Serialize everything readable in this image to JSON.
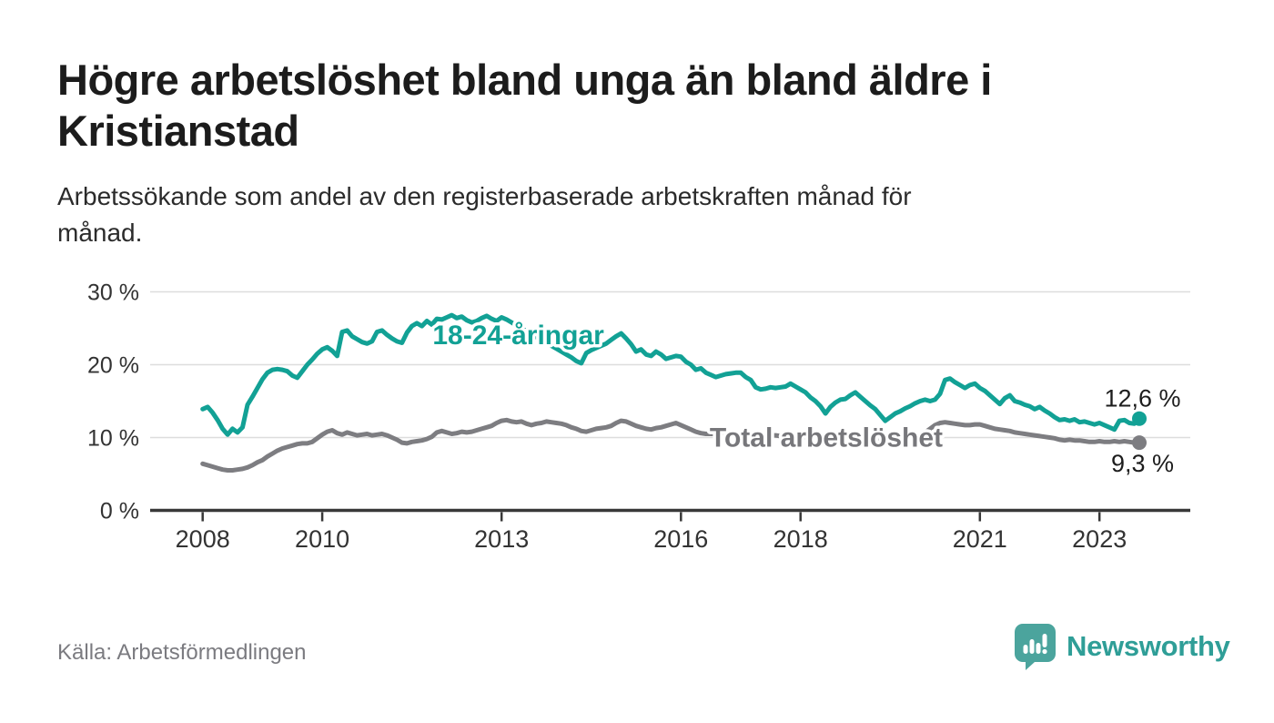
{
  "header": {
    "title_line1": "Högre arbetslöshet bland unga än bland äldre i",
    "title_line2": "Kristianstad",
    "subtitle_line1": "Arbetssökande som andel av den registerbaserade arbetskraften månad för",
    "subtitle_line2": "månad."
  },
  "footer": {
    "source": "Källa: Arbetsförmedlingen",
    "brand": "Newsworthy"
  },
  "colors": {
    "youth_line": "#12A195",
    "total_line": "#7D7D81",
    "grid": "#DDDDDD",
    "axis": "#383838",
    "tick_text": "#333333",
    "annotation_text": "#1D1D1D",
    "logo_bubble": "#4BA49D",
    "brand_text": "#2F9E97"
  },
  "chart_data": {
    "type": "line",
    "title": "Högre arbetslöshet bland unga än bland äldre i Kristianstad",
    "subtitle": "Arbetssökande som andel av den registerbaserade arbetskraften månad för månad.",
    "unit": "%",
    "x_start_year": 2008,
    "points_per_year": 12,
    "x_end_label": "sep 2023",
    "xlim": [
      2007.1,
      2024.6
    ],
    "ylim": [
      0,
      32
    ],
    "grid": "horizontal",
    "legend_position": "inline-labels",
    "xticks": [
      2008,
      2010,
      2013,
      2016,
      2018,
      2021,
      2023
    ],
    "xtick_labels": [
      "2008",
      "2010",
      "2013",
      "2016",
      "2018",
      "2021",
      "2023"
    ],
    "yticks": [
      0,
      10,
      20,
      30
    ],
    "ytick_labels": [
      "0 %",
      "10 %",
      "20 %",
      "30 %"
    ],
    "series": [
      {
        "name": "18-24-åringar",
        "color": "#12A195",
        "end_value": 12.6,
        "end_label": "12,6 %",
        "values": [
          13.9,
          14.2,
          13.4,
          12.4,
          11.2,
          10.4,
          11.2,
          10.7,
          11.4,
          14.5,
          15.6,
          16.8,
          18.0,
          18.9,
          19.3,
          19.4,
          19.3,
          19.1,
          18.5,
          18.2,
          19.1,
          20.0,
          20.7,
          21.5,
          22.1,
          22.4,
          21.9,
          21.2,
          24.5,
          24.7,
          23.9,
          23.5,
          23.1,
          22.9,
          23.2,
          24.5,
          24.7,
          24.1,
          23.6,
          23.2,
          23.0,
          24.4,
          25.3,
          25.7,
          25.3,
          26.0,
          25.5,
          26.3,
          26.2,
          26.5,
          26.8,
          26.4,
          26.6,
          26.1,
          25.8,
          26.0,
          26.4,
          26.7,
          26.3,
          26.0,
          26.5,
          26.2,
          25.8,
          25.4,
          25.0,
          24.6,
          24.2,
          23.8,
          23.4,
          23.0,
          22.6,
          22.2,
          21.8,
          21.4,
          21.0,
          20.5,
          20.2,
          21.6,
          22.0,
          22.3,
          22.6,
          22.9,
          23.4,
          23.9,
          24.3,
          23.6,
          22.8,
          21.8,
          22.1,
          21.4,
          21.2,
          21.8,
          21.4,
          20.8,
          21.0,
          21.2,
          21.1,
          20.4,
          20.0,
          19.3,
          19.5,
          18.9,
          18.6,
          18.3,
          18.5,
          18.7,
          18.8,
          18.9,
          18.9,
          18.3,
          17.9,
          16.9,
          16.6,
          16.7,
          16.9,
          16.8,
          16.9,
          17.0,
          17.4,
          17.0,
          16.6,
          16.2,
          15.5,
          15.0,
          14.3,
          13.3,
          14.2,
          14.8,
          15.2,
          15.3,
          15.8,
          16.2,
          15.6,
          15.0,
          14.4,
          13.9,
          13.1,
          12.3,
          12.8,
          13.3,
          13.6,
          14.0,
          14.3,
          14.7,
          15.0,
          15.2,
          15.0,
          15.2,
          16.0,
          17.9,
          18.1,
          17.6,
          17.2,
          16.8,
          17.2,
          17.4,
          16.8,
          16.4,
          15.8,
          15.2,
          14.6,
          15.4,
          15.8,
          15.0,
          14.8,
          14.5,
          14.3,
          13.9,
          14.2,
          13.7,
          13.3,
          12.8,
          12.4,
          12.5,
          12.3,
          12.5,
          12.1,
          12.2,
          12.0,
          11.8,
          12.0,
          11.7,
          11.4,
          11.1,
          12.3,
          12.4,
          12.0,
          11.9,
          12.6
        ]
      },
      {
        "name": "Total arbetslöshet",
        "color": "#7D7D81",
        "end_value": 9.3,
        "end_label": "9,3 %",
        "values": [
          6.4,
          6.2,
          6.0,
          5.8,
          5.6,
          5.5,
          5.5,
          5.6,
          5.7,
          5.9,
          6.2,
          6.6,
          6.9,
          7.4,
          7.8,
          8.2,
          8.5,
          8.7,
          8.9,
          9.1,
          9.2,
          9.2,
          9.4,
          9.9,
          10.4,
          10.8,
          11.0,
          10.6,
          10.4,
          10.7,
          10.5,
          10.3,
          10.4,
          10.5,
          10.3,
          10.4,
          10.5,
          10.3,
          10.0,
          9.7,
          9.3,
          9.2,
          9.4,
          9.5,
          9.6,
          9.8,
          10.1,
          10.7,
          10.9,
          10.7,
          10.5,
          10.6,
          10.8,
          10.7,
          10.8,
          11.0,
          11.2,
          11.4,
          11.6,
          12.0,
          12.3,
          12.4,
          12.2,
          12.1,
          12.2,
          11.9,
          11.7,
          11.9,
          12.0,
          12.2,
          12.1,
          12.0,
          11.9,
          11.7,
          11.4,
          11.2,
          10.9,
          10.8,
          11.0,
          11.2,
          11.3,
          11.4,
          11.6,
          12.0,
          12.3,
          12.2,
          11.9,
          11.6,
          11.4,
          11.2,
          11.1,
          11.3,
          11.4,
          11.6,
          11.8,
          12.0,
          11.7,
          11.4,
          11.1,
          10.8,
          10.6,
          10.5,
          10.5,
          10.5,
          10.5,
          10.5,
          10.5,
          10.5,
          10.5,
          10.4,
          10.4,
          10.4,
          10.3,
          10.3,
          10.3,
          10.3,
          10.2,
          10.2,
          10.2,
          10.2,
          10.1,
          10.1,
          10.0,
          10.0,
          9.9,
          9.9,
          9.9,
          9.9,
          9.9,
          9.8,
          9.8,
          9.8,
          9.8,
          9.8,
          9.8,
          9.8,
          9.9,
          9.9,
          9.9,
          10.0,
          10.0,
          10.1,
          10.2,
          10.3,
          10.4,
          10.7,
          11.2,
          11.7,
          12.0,
          12.1,
          12.0,
          11.9,
          11.8,
          11.7,
          11.7,
          11.8,
          11.8,
          11.6,
          11.4,
          11.2,
          11.1,
          11.0,
          10.9,
          10.7,
          10.6,
          10.5,
          10.4,
          10.3,
          10.2,
          10.1,
          10.0,
          9.9,
          9.7,
          9.6,
          9.7,
          9.6,
          9.6,
          9.5,
          9.4,
          9.4,
          9.5,
          9.4,
          9.4,
          9.5,
          9.4,
          9.5,
          9.4,
          9.3,
          9.3
        ]
      }
    ],
    "annotations": [
      {
        "text": "18-24-åringar",
        "year": 2013.28,
        "value": 24.1,
        "color": "#12A195",
        "bold": true,
        "size": 30,
        "halo": true
      },
      {
        "text": "Total arbetslöshet",
        "year": 2018.43,
        "value": 10.05,
        "color": "#77777B",
        "bold": true,
        "size": 30,
        "halo": true
      },
      {
        "text": "12,6 %",
        "year": 2023.72,
        "value": 15.45,
        "color": "#1D1D1D",
        "bold": false,
        "size": 27,
        "halo": false
      },
      {
        "text": "9,3 %",
        "year": 2023.72,
        "value": 6.5,
        "color": "#1D1D1D",
        "bold": false,
        "size": 27,
        "halo": false
      }
    ]
  }
}
